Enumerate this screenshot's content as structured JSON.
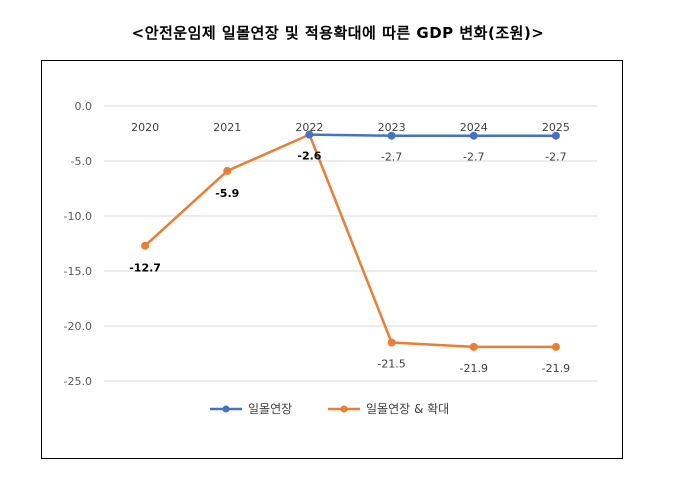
{
  "title": "<안전운임제 일몰연장 및 적용확대에 따른 GDP 변화(조원)>",
  "chart_data": {
    "type": "line",
    "categories": [
      "2020",
      "2021",
      "2022",
      "2023",
      "2024",
      "2025"
    ],
    "y_ticks": [
      "0.0",
      "-5.0",
      "-10.0",
      "-15.0",
      "-20.0",
      "-25.0"
    ],
    "ylim": [
      -25,
      0
    ],
    "grid": true,
    "legend_position": "bottom",
    "series": [
      {
        "name": "일몰연장",
        "color": "#4472C4",
        "values": [
          null,
          null,
          -2.6,
          -2.7,
          -2.7,
          -2.7
        ],
        "labels": [
          "",
          "",
          "",
          "-2.7",
          "-2.7",
          "-2.7"
        ]
      },
      {
        "name": "일몰연장 & 확대",
        "color": "#ED7D31",
        "values": [
          -12.7,
          -5.9,
          -2.6,
          -21.5,
          -21.9,
          -21.9
        ],
        "labels": [
          "-12.7",
          "-5.9",
          "-2.6",
          "-21.5",
          "-21.9",
          "-21.9"
        ]
      }
    ]
  }
}
